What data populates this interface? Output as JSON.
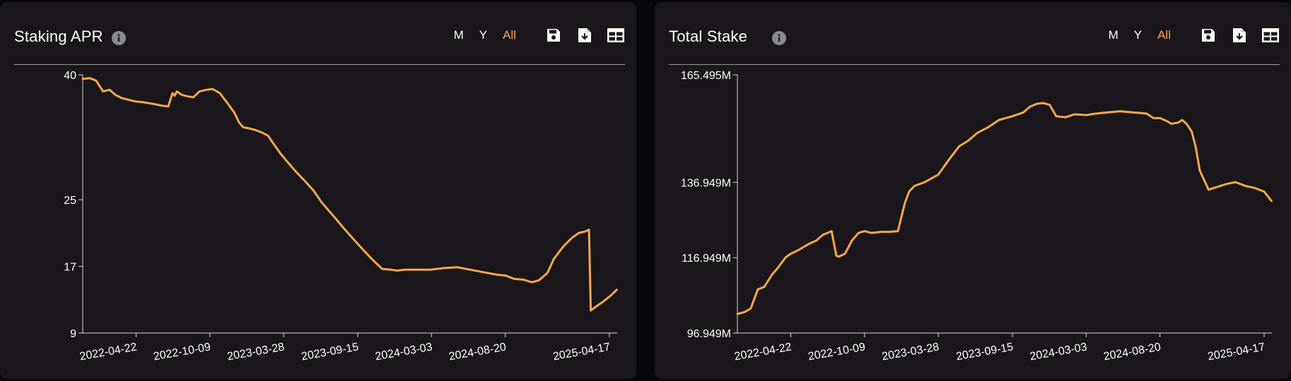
{
  "colors": {
    "panel_bg": "#1a161b",
    "accent": "#ffa64d",
    "line": "#f7a84c",
    "axis": "#d9d9d9",
    "text": "#ffffff"
  },
  "icons": {
    "info": "info-icon",
    "save": "floppy-disk-icon",
    "download": "file-download-icon",
    "table": "table-icon"
  },
  "panels": [
    {
      "title": "Staking APR",
      "range_buttons": [
        "M",
        "Y",
        "All"
      ],
      "active_range": "All"
    },
    {
      "title": "Total Stake",
      "range_buttons": [
        "M",
        "Y",
        "All"
      ],
      "active_range": "All"
    }
  ],
  "chart_data": [
    {
      "type": "line",
      "title": "Staking APR",
      "xlabel": "",
      "ylabel": "",
      "x_tick_labels": [
        "2022-04-22",
        "2022-10-09",
        "2023-03-28",
        "2023-09-15",
        "2024-03-03",
        "2024-08-20",
        "2025-04-17"
      ],
      "y_tick_labels": [
        "40",
        "25",
        "17",
        "9"
      ],
      "x_range": [
        "2021-12-20",
        "2025-05-05"
      ],
      "y_range": [
        9,
        40
      ],
      "grid": false,
      "series": [
        {
          "x": [
            "2021-12-20",
            "2022-01-05",
            "2022-01-20",
            "2022-02-05",
            "2022-02-20",
            "2022-03-05",
            "2022-03-20",
            "2022-04-05",
            "2022-04-20",
            "2022-05-10",
            "2022-06-01",
            "2022-06-20",
            "2022-07-05",
            "2022-07-15",
            "2022-07-20",
            "2022-07-25",
            "2022-08-05",
            "2022-08-20",
            "2022-09-01",
            "2022-09-15",
            "2022-10-01",
            "2022-10-15",
            "2022-11-01",
            "2022-11-20",
            "2022-12-05",
            "2022-12-15",
            "2022-12-25",
            "2023-01-05",
            "2023-01-20",
            "2023-02-05",
            "2023-02-20",
            "2023-03-05",
            "2023-03-20",
            "2023-04-05",
            "2023-04-25",
            "2023-05-15",
            "2023-06-05",
            "2023-06-25",
            "2023-07-20",
            "2023-08-15",
            "2023-09-15",
            "2023-10-15",
            "2023-11-10",
            "2023-12-01",
            "2023-12-15",
            "2024-01-01",
            "2024-02-01",
            "2024-03-01",
            "2024-04-01",
            "2024-05-01",
            "2024-06-01",
            "2024-07-01",
            "2024-08-01",
            "2024-08-20",
            "2024-09-10",
            "2024-10-01",
            "2024-10-20",
            "2024-11-05",
            "2024-11-25",
            "2024-12-10",
            "2025-01-01",
            "2025-01-20",
            "2025-02-05",
            "2025-02-20",
            "2025-03-01",
            "2025-03-05",
            "2025-03-15",
            "2025-04-01",
            "2025-04-20",
            "2025-05-04"
          ],
          "y": [
            39.5,
            39.6,
            39.3,
            38.0,
            38.2,
            37.6,
            37.2,
            37.0,
            36.8,
            36.7,
            36.5,
            36.3,
            36.2,
            37.8,
            37.5,
            38.0,
            37.6,
            37.4,
            37.3,
            38.0,
            38.2,
            38.3,
            37.8,
            36.5,
            35.4,
            34.3,
            33.7,
            33.6,
            33.4,
            33.1,
            32.7,
            31.7,
            30.6,
            29.6,
            28.4,
            27.3,
            26.1,
            24.6,
            23.1,
            21.5,
            19.7,
            18.0,
            16.7,
            16.6,
            16.5,
            16.6,
            16.6,
            16.6,
            16.8,
            16.9,
            16.6,
            16.3,
            16.0,
            15.9,
            15.5,
            15.4,
            15.1,
            15.3,
            16.2,
            17.9,
            19.4,
            20.4,
            21.0,
            21.2,
            21.4,
            11.7,
            12.1,
            12.7,
            13.5,
            14.2
          ]
        }
      ]
    },
    {
      "type": "line",
      "title": "Total Stake",
      "xlabel": "",
      "ylabel": "",
      "x_tick_labels": [
        "2022-04-22",
        "2022-10-09",
        "2023-03-28",
        "2023-09-15",
        "2024-03-03",
        "2024-08-20",
        "2025-04-17"
      ],
      "y_tick_labels": [
        "165.495M",
        "136.949M",
        "116.949M",
        "96.949M"
      ],
      "x_range": [
        "2021-12-20",
        "2025-05-05"
      ],
      "y_range": [
        96.949,
        165.495
      ],
      "y_unit": "M",
      "grid": false,
      "series": [
        {
          "x": [
            "2021-12-20",
            "2022-01-05",
            "2022-01-20",
            "2022-02-05",
            "2022-02-20",
            "2022-03-10",
            "2022-03-25",
            "2022-04-10",
            "2022-04-22",
            "2022-05-10",
            "2022-06-01",
            "2022-06-20",
            "2022-07-05",
            "2022-07-25",
            "2022-08-05",
            "2022-08-10",
            "2022-08-25",
            "2022-09-10",
            "2022-09-25",
            "2022-10-09",
            "2022-10-25",
            "2022-11-15",
            "2022-12-05",
            "2022-12-25",
            "2023-01-10",
            "2023-01-20",
            "2023-02-01",
            "2023-02-25",
            "2023-03-28",
            "2023-04-25",
            "2023-05-15",
            "2023-06-05",
            "2023-06-25",
            "2023-07-20",
            "2023-08-15",
            "2023-09-15",
            "2023-10-10",
            "2023-10-25",
            "2023-11-10",
            "2023-11-25",
            "2023-12-10",
            "2023-12-25",
            "2024-01-15",
            "2024-02-05",
            "2024-03-03",
            "2024-03-25",
            "2024-04-20",
            "2024-05-20",
            "2024-06-20",
            "2024-07-20",
            "2024-08-05",
            "2024-08-20",
            "2024-09-05",
            "2024-09-15",
            "2024-10-01",
            "2024-10-10",
            "2024-10-20",
            "2024-11-01",
            "2024-11-10",
            "2024-11-20",
            "2024-12-10",
            "2025-01-01",
            "2025-01-20",
            "2025-02-10",
            "2025-03-05",
            "2025-03-25",
            "2025-04-17",
            "2025-05-04"
          ],
          "y": [
            102.0,
            102.5,
            103.5,
            108.5,
            109.2,
            112.5,
            114.5,
            117.0,
            118.0,
            119.0,
            120.5,
            121.5,
            123.0,
            124.0,
            117.5,
            117.2,
            118.0,
            121.5,
            123.5,
            124.0,
            123.5,
            123.8,
            123.8,
            124.0,
            131.5,
            134.5,
            136.0,
            137.0,
            139.0,
            143.5,
            146.5,
            148.0,
            150.0,
            151.5,
            153.5,
            154.5,
            155.5,
            157.0,
            157.8,
            158.0,
            157.5,
            154.5,
            154.2,
            155.0,
            154.8,
            155.2,
            155.5,
            155.8,
            155.5,
            155.2,
            154.0,
            154.0,
            153.2,
            152.5,
            152.8,
            153.5,
            152.5,
            150.5,
            146.5,
            140.0,
            135.0,
            135.8,
            136.5,
            137.0,
            136.0,
            135.5,
            134.5,
            132.0
          ]
        }
      ]
    }
  ]
}
